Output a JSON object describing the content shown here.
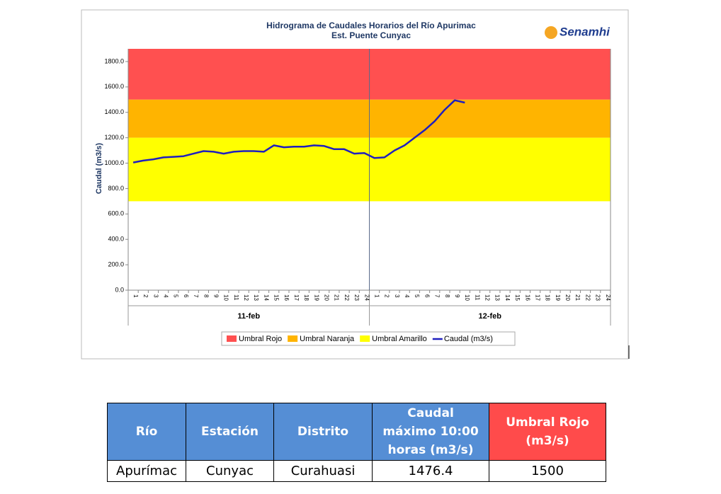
{
  "chart_data": {
    "type": "line",
    "title": "Hidrograma de Caudales Horarios del Río Apurimac",
    "subtitle": "Est. Puente Cunyac",
    "logo": "Senamhi",
    "ylabel": "Caudal (m3/s)",
    "ylim": [
      0,
      1900
    ],
    "yticks": [
      {
        "value": 0,
        "label": "0.0"
      },
      {
        "value": 200,
        "label": "200.0"
      },
      {
        "value": 400,
        "label": "400.0"
      },
      {
        "value": 600,
        "label": "600.0"
      },
      {
        "value": 800,
        "label": "800.0"
      },
      {
        "value": 1000,
        "label": "1000.0"
      },
      {
        "value": 1200,
        "label": "1200.0"
      },
      {
        "value": 1400,
        "label": "1400.0"
      },
      {
        "value": 1600,
        "label": "1600.0"
      },
      {
        "value": 1800,
        "label": "1800.0"
      }
    ],
    "groups": [
      "11-feb",
      "12-feb"
    ],
    "categories": [
      1,
      2,
      3,
      4,
      5,
      6,
      7,
      8,
      9,
      10,
      11,
      12,
      13,
      14,
      15,
      16,
      17,
      18,
      19,
      20,
      21,
      22,
      23,
      24,
      1,
      2,
      3,
      4,
      5,
      6,
      7,
      8,
      9,
      10,
      11,
      12,
      13,
      14,
      15,
      16,
      17,
      18,
      19,
      20,
      21,
      22,
      23,
      24
    ],
    "bands": [
      {
        "name": "Umbral Rojo",
        "color": "#ff5050",
        "from": 1500,
        "to": 1900
      },
      {
        "name": "Umbral Naranja",
        "color": "#ffb400",
        "from": 1200,
        "to": 1500
      },
      {
        "name": "Umbral Amarillo",
        "color": "#ffff00",
        "from": 700,
        "to": 1200
      }
    ],
    "series": [
      {
        "name": "Caudal (m3/s)",
        "color": "#1f1fbf",
        "values": [
          1005,
          1020,
          1030,
          1045,
          1050,
          1055,
          1075,
          1095,
          1090,
          1075,
          1090,
          1095,
          1095,
          1090,
          1140,
          1125,
          1130,
          1130,
          1140,
          1135,
          1110,
          1110,
          1075,
          1080,
          1040,
          1045,
          1100,
          1140,
          1200,
          1260,
          1330,
          1420,
          1495,
          1476.4,
          null,
          null,
          null,
          null,
          null,
          null,
          null,
          null,
          null,
          null,
          null,
          null,
          null,
          null
        ]
      }
    ]
  },
  "table": {
    "headers": [
      "Río",
      "Estación",
      "Distrito",
      "Caudal máximo 10:00 horas (m3/s)",
      "Umbral Rojo (m3/s)"
    ],
    "rows": [
      [
        "Apurímac",
        "Cunyac",
        "Curahuasi",
        1476.4,
        1500
      ]
    ]
  }
}
